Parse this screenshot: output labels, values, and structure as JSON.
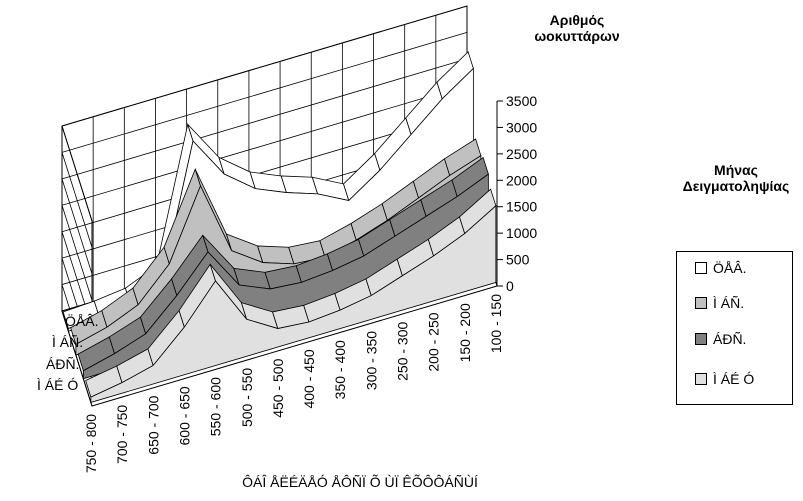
{
  "chart_data": {
    "type": "area",
    "subtype": "3d-area",
    "title": "",
    "xlabel": "ÔÁÎ ÅËÉÄÅÓ ÅÔÑÏ Õ ÙÏ ÊÕÔÔÁÑÙÍ",
    "zlabel": [
      "Αριθμός",
      "ωοκυττάρων"
    ],
    "legend_title": [
      "Μήνας",
      "Δειγματοληψίας"
    ],
    "legend_position": "right",
    "grid": true,
    "zlim": [
      0,
      3500
    ],
    "zticks": [
      "0",
      "500",
      "1000",
      "1500",
      "2000",
      "2500",
      "3000",
      "3500"
    ],
    "categories": [
      "750 - 800",
      "700 - 750",
      "650 - 700",
      "600 - 650",
      "550 - 600",
      "500 - 550",
      "450 - 500",
      "400 - 450",
      "350 - 400",
      "300 - 350",
      "250 - 300",
      "200 - 250",
      "150 - 200",
      "100 - 150"
    ],
    "series": [
      {
        "name": "ÖÅÂ.",
        "color": "#ffffff",
        "values": [
          50,
          80,
          150,
          400,
          2900,
          2100,
          1650,
          1400,
          1200,
          900,
          1300,
          1800,
          2300,
          2700
        ]
      },
      {
        "name": "Ì ÁÑ.",
        "color": "#c0c0c0",
        "values": [
          200,
          350,
          600,
          1200,
          2500,
          1100,
          700,
          500,
          450,
          600,
          800,
          1050,
          1300,
          1500
        ]
      },
      {
        "name": "ÁÐÑ.",
        "color": "#808080",
        "values": [
          150,
          300,
          500,
          1050,
          1700,
          900,
          650,
          600,
          650,
          750,
          950,
          1150,
          1350,
          1600
        ]
      },
      {
        "name": "Ì ÁÉ Ó",
        "color": "#e0e0e0",
        "values": [
          100,
          200,
          350,
          900,
          1600,
          700,
          350,
          300,
          350,
          450,
          650,
          850,
          1100,
          1450
        ]
      }
    ]
  }
}
